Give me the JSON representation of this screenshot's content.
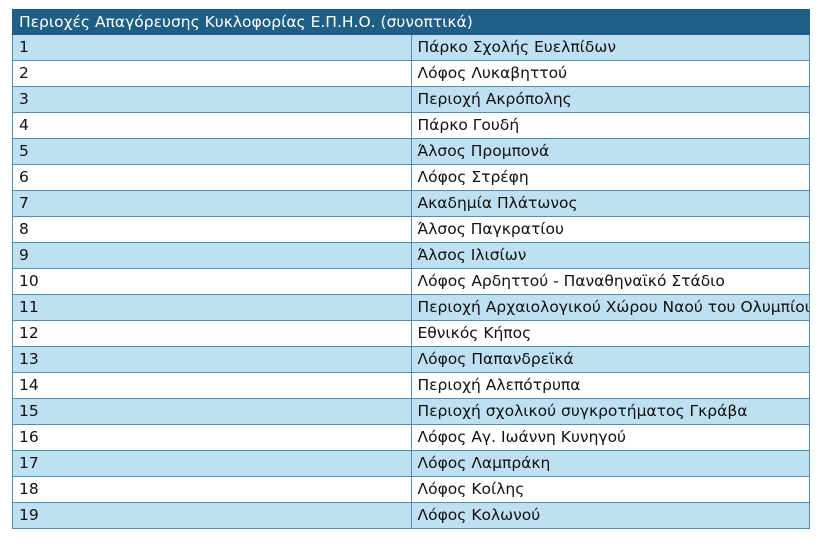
{
  "table": {
    "title": "Περιοχές Απαγόρευσης Κυκλοφορίας Ε.Π.Η.Ο. (συνοπτικά)",
    "rows": [
      {
        "num": "1",
        "name": "Πάρκο Σχολής Ευελπίδων"
      },
      {
        "num": "2",
        "name": "Λόφος Λυκαβηττού"
      },
      {
        "num": "3",
        "name": "Περιοχή Ακρόπολης"
      },
      {
        "num": "4",
        "name": "Πάρκο Γουδή"
      },
      {
        "num": "5",
        "name": "Άλσος Προμπονά"
      },
      {
        "num": "6",
        "name": "Λόφος Στρέφη"
      },
      {
        "num": "7",
        "name": "Ακαδημία Πλάτωνος"
      },
      {
        "num": "8",
        "name": "Άλσος Παγκρατίου"
      },
      {
        "num": "9",
        "name": "Άλσος Ιλισίων"
      },
      {
        "num": "10",
        "name": "Λόφος Αρδηττού - Παναθηναϊκό Στάδιο"
      },
      {
        "num": "11",
        "name": "Περιοχή Αρχαιολογικού Χώρου Ναού του Ολυμπίου Διός"
      },
      {
        "num": "12",
        "name": "Εθνικός Κήπος"
      },
      {
        "num": "13",
        "name": "Λόφος Παπανδρεϊκά"
      },
      {
        "num": "14",
        "name": "Περιοχή Αλεπότρυπα"
      },
      {
        "num": "15",
        "name": "Περιοχή σχολικού συγκροτήματος Γκράβα"
      },
      {
        "num": "16",
        "name": "Λόφος Αγ. Ιωάννη Κυνηγού"
      },
      {
        "num": "17",
        "name": "Λόφος Λαμπράκη"
      },
      {
        "num": "18",
        "name": "Λόφος Κοίλης"
      },
      {
        "num": "19",
        "name": "Λόφος Κολωνού"
      }
    ]
  }
}
